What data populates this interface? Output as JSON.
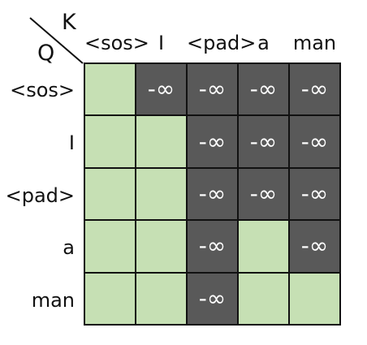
{
  "diagram": {
    "key_axis_label": "K",
    "query_axis_label": "Q",
    "columns": [
      "<sos>",
      "I",
      "<pad>",
      "a",
      "man"
    ],
    "rows": [
      "<sos>",
      "I",
      "<pad>",
      "a",
      "man"
    ],
    "mask_symbol": "-∞",
    "colors": {
      "open": "#c6e0b4",
      "masked": "#595959",
      "border": "#111111"
    },
    "cells": [
      [
        "open",
        "masked",
        "masked",
        "masked",
        "masked"
      ],
      [
        "open",
        "open",
        "masked",
        "masked",
        "masked"
      ],
      [
        "open",
        "open",
        "masked",
        "masked",
        "masked"
      ],
      [
        "open",
        "open",
        "masked",
        "open",
        "masked"
      ],
      [
        "open",
        "open",
        "masked",
        "open",
        "open"
      ]
    ]
  }
}
